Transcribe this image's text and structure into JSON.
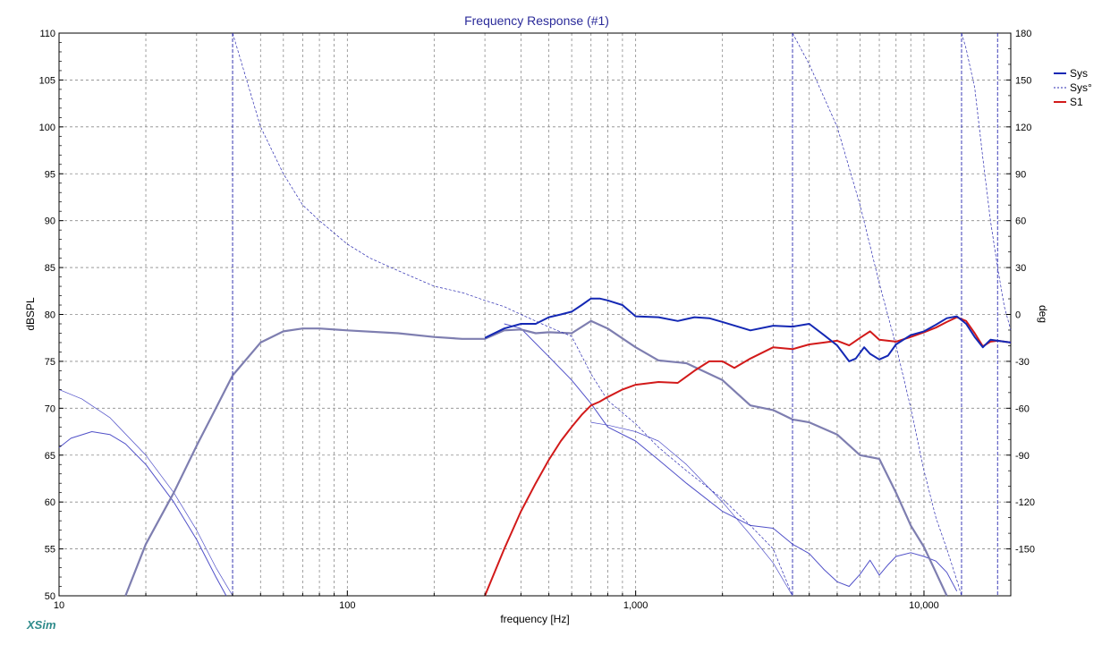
{
  "window": {
    "brand": "XSim"
  },
  "chart_data": {
    "type": "line",
    "title": "Frequency Response (#1)",
    "xlabel": "frequency [Hz]",
    "ylabel": "dBSPL",
    "y2label": "deg",
    "xscale": "log",
    "xlim": [
      10,
      20000
    ],
    "ylim": [
      50,
      110
    ],
    "y2lim": [
      -180,
      180
    ],
    "x_tick_labels": [
      {
        "v": 10,
        "label": "10"
      },
      {
        "v": 100,
        "label": "100"
      },
      {
        "v": 1000,
        "label": "1,000"
      },
      {
        "v": 10000,
        "label": "10,000"
      }
    ],
    "y_ticks": [
      110,
      105,
      100,
      95,
      90,
      85,
      80,
      75,
      70,
      65,
      60,
      55,
      50
    ],
    "y2_ticks": [
      180,
      150,
      120,
      90,
      60,
      30,
      0,
      -30,
      -60,
      -90,
      -120,
      -150
    ],
    "grid": true,
    "legend_position": "right",
    "colors": {
      "sys": "#1428b4",
      "phase": "#2a2ab0",
      "s1": "#d21a1a",
      "grey": "#7e7eb0",
      "thin": "#5050c8"
    },
    "legend": [
      {
        "name": "Sys",
        "style": "solid",
        "color": "#1428b4"
      },
      {
        "name": "Sys°",
        "style": "dashed",
        "color": "#2a2ab0"
      },
      {
        "name": "S1",
        "style": "solid",
        "color": "#d21a1a"
      }
    ],
    "series": [
      {
        "name": "Sys",
        "axis": "left",
        "x": [
          300,
          350,
          400,
          450,
          500,
          550,
          600,
          650,
          700,
          750,
          800,
          900,
          1000,
          1200,
          1400,
          1600,
          1800,
          2000,
          2500,
          3000,
          3500,
          4000,
          4500,
          5000,
          5500,
          5800,
          6200,
          6500,
          7000,
          7500,
          8000,
          9000,
          10000,
          11000,
          12000,
          13000,
          14000,
          15000,
          16000,
          17000,
          18000,
          20000
        ],
        "y": [
          77.5,
          78.5,
          79,
          79,
          79.7,
          80,
          80.3,
          81,
          81.7,
          81.7,
          81.5,
          81,
          79.8,
          79.7,
          79.3,
          79.7,
          79.6,
          79.2,
          78.3,
          78.8,
          78.7,
          79,
          77.8,
          76.7,
          75,
          75.3,
          76.5,
          75.8,
          75.2,
          75.6,
          76.8,
          77.8,
          78.2,
          78.9,
          79.6,
          79.8,
          79,
          77.6,
          76.5,
          77.3,
          77.2,
          77
        ]
      },
      {
        "name": "S1",
        "axis": "left",
        "x": [
          300,
          350,
          400,
          450,
          500,
          550,
          600,
          650,
          700,
          750,
          800,
          900,
          1000,
          1200,
          1400,
          1600,
          1800,
          2000,
          2200,
          2500,
          3000,
          3500,
          4000,
          4500,
          5000,
          5500,
          6000,
          6500,
          7000,
          8000,
          9000,
          10000,
          11000,
          12000,
          13000,
          14000,
          15000,
          16000,
          17000,
          18000,
          20000
        ],
        "y": [
          50,
          55,
          59,
          62,
          64.5,
          66.5,
          68,
          69.3,
          70.3,
          70.7,
          71.2,
          72,
          72.5,
          72.8,
          72.7,
          74,
          75,
          75,
          74.3,
          75.3,
          76.5,
          76.3,
          76.8,
          77,
          77.2,
          76.7,
          77.5,
          78.2,
          77.3,
          77.1,
          77.6,
          78.1,
          78.6,
          79.2,
          79.7,
          79.3,
          78,
          76.6,
          77.1,
          77.2,
          77
        ]
      },
      {
        "name": "Sys°",
        "axis": "right",
        "x": [
          40,
          50,
          60,
          70,
          80,
          100,
          120,
          150,
          200,
          250,
          300,
          350,
          400,
          500,
          600,
          700,
          800,
          1000,
          1200,
          1500,
          2000,
          2500,
          3000,
          3500
        ],
        "y": [
          180,
          120,
          90,
          70,
          60,
          45,
          36,
          28,
          18,
          14,
          9,
          5,
          0,
          -8,
          -14,
          -38,
          -55,
          -70,
          -85,
          -100,
          -118,
          -135,
          -150,
          -180
        ]
      },
      {
        "name": "Sys°",
        "axis": "right",
        "x": [
          3500,
          4000,
          5000,
          6000,
          7000,
          8000,
          9000,
          10000,
          11000,
          12000,
          13000,
          13500
        ],
        "y": [
          180,
          160,
          120,
          70,
          20,
          -20,
          -60,
          -100,
          -130,
          -150,
          -170,
          -180
        ]
      },
      {
        "name": "Sys°",
        "axis": "right",
        "x": [
          13500,
          14000,
          15000,
          16000,
          17000,
          18000,
          19000,
          20000
        ],
        "y": [
          180,
          170,
          145,
          100,
          60,
          30,
          5,
          -10
        ]
      },
      {
        "name": "",
        "axis": "left",
        "x": [
          17,
          20,
          25,
          30,
          35,
          40,
          50,
          60,
          70,
          80,
          100,
          150,
          200,
          250,
          300,
          350,
          400,
          450,
          500,
          600,
          700,
          800,
          1000,
          1200,
          1500,
          2000,
          2500,
          3000,
          3500,
          4000,
          5000,
          6000,
          7000,
          8000,
          9000,
          10000,
          11000,
          12000
        ],
        "y": [
          50,
          55.5,
          61,
          66,
          70,
          73.5,
          77,
          78.2,
          78.5,
          78.5,
          78.3,
          78,
          77.6,
          77.4,
          77.4,
          78.3,
          78.4,
          78,
          78.1,
          78,
          79.3,
          78.5,
          76.5,
          75.1,
          74.8,
          73,
          70.3,
          69.8,
          68.8,
          68.5,
          67.2,
          65,
          64.6,
          61,
          57.5,
          55.2,
          52.5,
          50
        ]
      },
      {
        "name": "",
        "axis": "left",
        "x": [
          10,
          11,
          13,
          15,
          17,
          20,
          25,
          30,
          35,
          38
        ],
        "y": [
          65.8,
          66.8,
          67.5,
          67.2,
          66.2,
          64,
          60,
          56,
          52,
          50
        ]
      },
      {
        "name": "",
        "axis": "left",
        "x": [
          10,
          12,
          15,
          20,
          25,
          30,
          35,
          40
        ],
        "y": [
          72,
          71,
          69,
          65,
          61,
          57,
          53,
          50
        ]
      },
      {
        "name": "",
        "axis": "left",
        "x": [
          350,
          400,
          500,
          600,
          700,
          800,
          1000,
          1200,
          1500,
          2000,
          2500,
          3000,
          3500,
          4000,
          4500,
          5000,
          5500,
          6000,
          6500,
          7000,
          7500,
          8000,
          9000,
          10000,
          11000,
          12000,
          13000
        ],
        "y": [
          79,
          78.5,
          75.5,
          73,
          70.5,
          68,
          66.5,
          64.5,
          62,
          59,
          57.5,
          57.2,
          55.5,
          54.5,
          52.8,
          51.5,
          51,
          52.3,
          53.8,
          52.2,
          53.3,
          54.2,
          54.6,
          54.2,
          53.7,
          52.5,
          50.5
        ]
      },
      {
        "name": "",
        "axis": "left",
        "x": [
          700,
          800,
          1000,
          1200,
          1500,
          2000,
          2500,
          3000,
          3500
        ],
        "y": [
          68.5,
          68.2,
          67.5,
          66.5,
          64,
          60,
          56.5,
          53.5,
          50
        ]
      }
    ]
  }
}
